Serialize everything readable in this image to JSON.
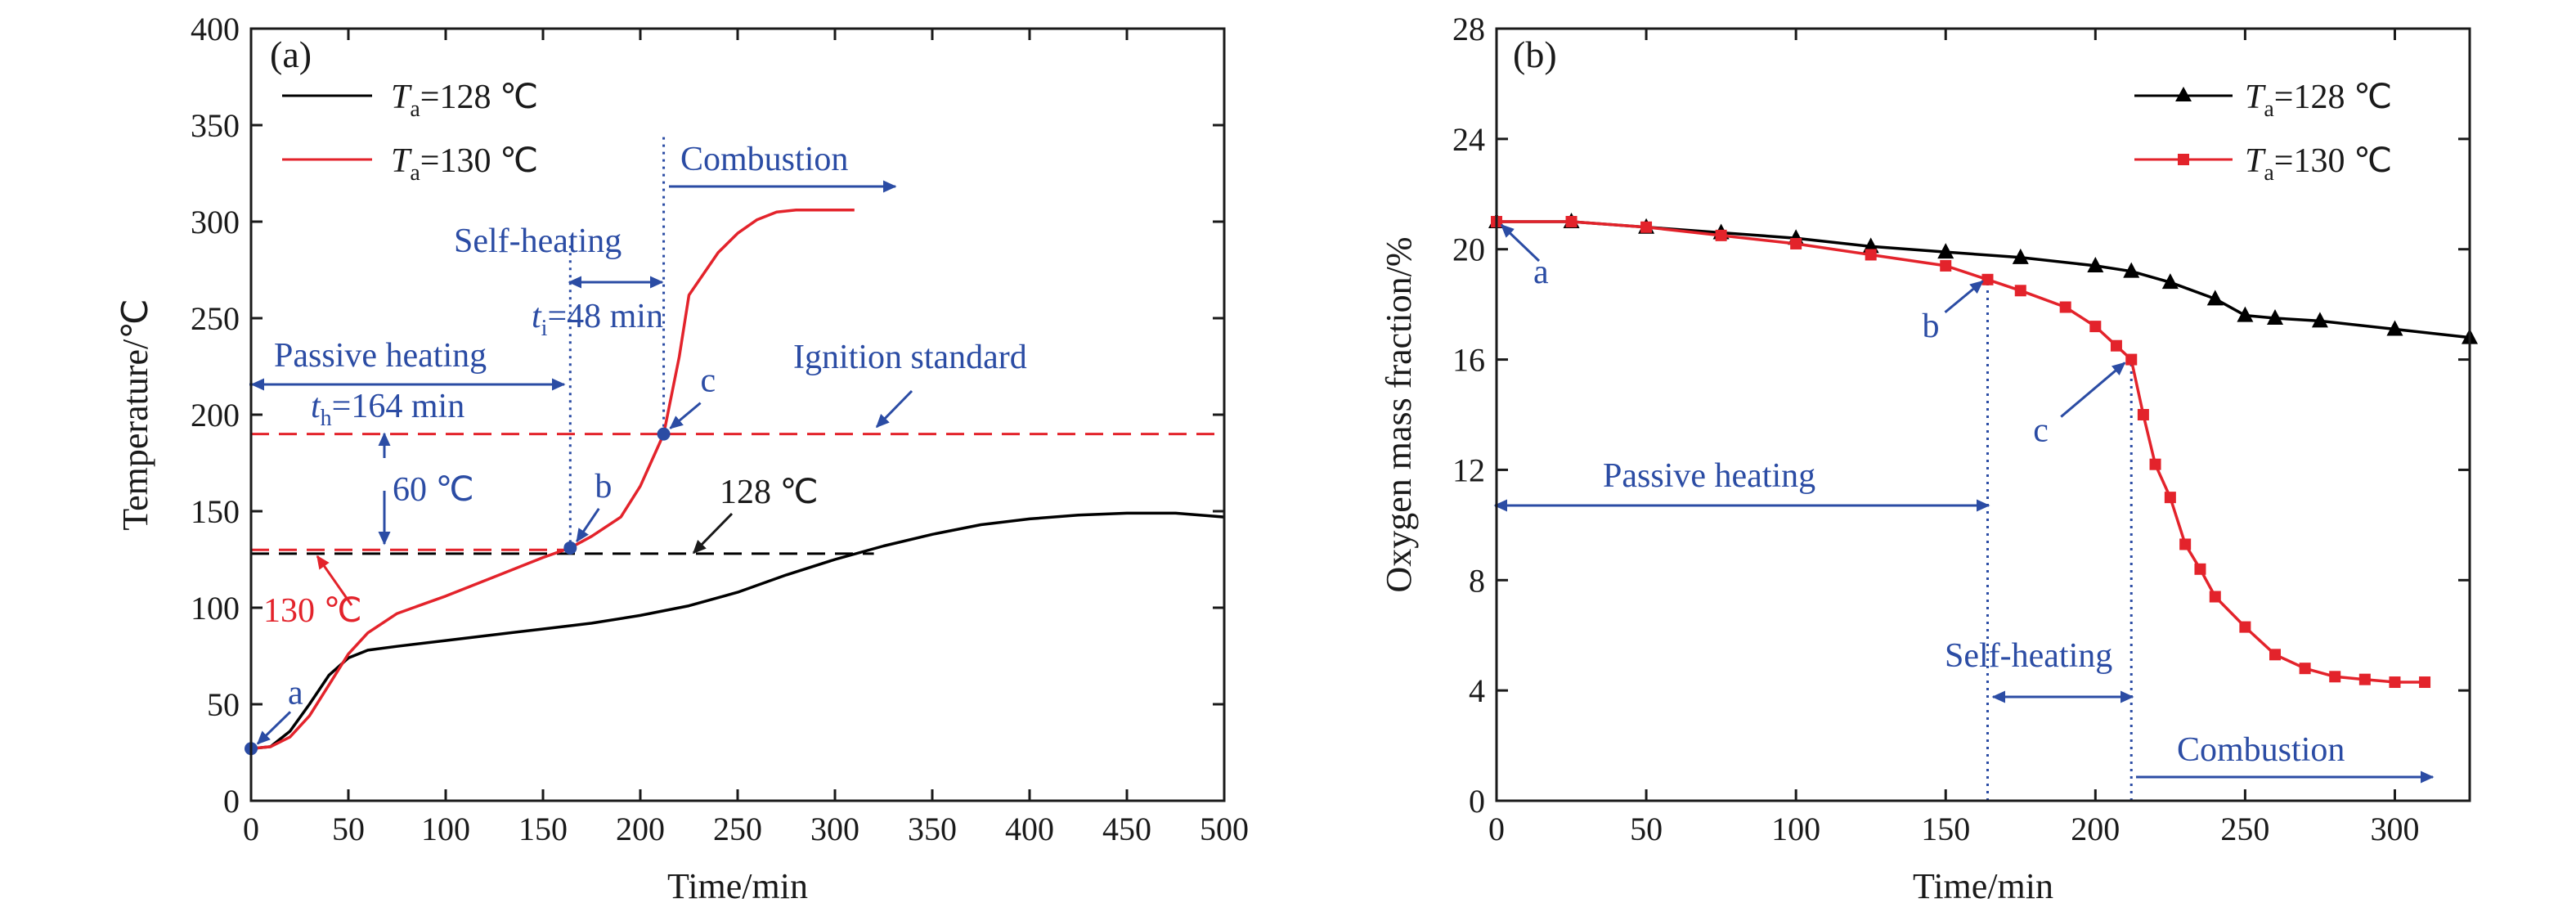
{
  "chart_data": [
    {
      "panel_label": "(a)",
      "type": "line",
      "xlabel": "Time/min",
      "ylabel": "Temperature/℃",
      "xlim": [
        0,
        500
      ],
      "ylim": [
        0,
        400
      ],
      "xticks": [
        0,
        50,
        100,
        150,
        200,
        250,
        300,
        350,
        400,
        450,
        500
      ],
      "yticks": [
        0,
        50,
        100,
        150,
        200,
        250,
        300,
        350,
        400
      ],
      "legend_position": "top-left",
      "grid": false,
      "series": [
        {
          "legend": {
            "var": "T",
            "sub": "a",
            "rest": "=128 ℃"
          },
          "color": "#000000",
          "x": [
            0,
            10,
            20,
            30,
            40,
            50,
            60,
            75,
            100,
            125,
            150,
            175,
            200,
            225,
            250,
            275,
            300,
            325,
            350,
            375,
            400,
            425,
            450,
            475,
            500
          ],
          "y": [
            27,
            28,
            36,
            50,
            65,
            74,
            78,
            80,
            83,
            86,
            89,
            92,
            96,
            101,
            108,
            117,
            125,
            132,
            138,
            143,
            146,
            148,
            149,
            149,
            147
          ]
        },
        {
          "legend": {
            "var": "T",
            "sub": "a",
            "rest": "=130 ℃"
          },
          "color": "#e3232b",
          "x": [
            0,
            10,
            20,
            30,
            40,
            50,
            60,
            75,
            100,
            125,
            150,
            164,
            175,
            190,
            200,
            212,
            220,
            225,
            240,
            250,
            260,
            270,
            280,
            300,
            310
          ],
          "y": [
            27,
            28,
            33,
            44,
            60,
            76,
            87,
            97,
            106,
            116,
            126,
            131,
            137,
            147,
            163,
            190,
            230,
            262,
            284,
            294,
            301,
            305,
            306,
            306,
            306
          ]
        }
      ],
      "reference_lines": [
        {
          "y": 190,
          "color": "#e3232b",
          "style": "dashed",
          "x_range": [
            0,
            500
          ]
        },
        {
          "y": 130,
          "color": "#e3232b",
          "style": "dashed",
          "x_range": [
            0,
            164
          ]
        },
        {
          "y": 128,
          "color": "#000000",
          "style": "dashed",
          "x_range": [
            0,
            320
          ]
        },
        {
          "x": 164,
          "color": "#2b4ca4",
          "style": "dotted",
          "y_range": [
            130,
            290
          ]
        },
        {
          "x": 212,
          "color": "#2b4ca4",
          "style": "dotted",
          "y_range": [
            190,
            345
          ]
        }
      ],
      "markers": [
        {
          "label": "a",
          "x": 0,
          "y": 27
        },
        {
          "label": "b",
          "x": 164,
          "y": 131
        },
        {
          "label": "c",
          "x": 212,
          "y": 190
        }
      ],
      "annotations": {
        "passive": "Passive heating",
        "th_var": "t",
        "th_sub": "h",
        "th_rest": "=164 min",
        "self_heating": "Self-heating",
        "ti_var": "t",
        "ti_sub": "i",
        "ti_rest": "=48 min",
        "combustion": "Combustion",
        "ignition": "Ignition standard",
        "delta": "60 ℃",
        "t128": "128 ℃",
        "t130": "130 ℃"
      }
    },
    {
      "panel_label": "(b)",
      "type": "line",
      "xlabel": "Time/min",
      "ylabel": "Oxygen mass fraction/%",
      "xlim": [
        0,
        325
      ],
      "ylim": [
        0,
        28
      ],
      "xticks": [
        0,
        50,
        100,
        150,
        200,
        250,
        300
      ],
      "yticks": [
        0,
        4,
        8,
        12,
        16,
        20,
        24,
        28
      ],
      "legend_position": "top-right",
      "grid": false,
      "series": [
        {
          "legend": {
            "var": "T",
            "sub": "a",
            "rest": "=128 ℃"
          },
          "color": "#000000",
          "marker": "triangle",
          "x": [
            0,
            25,
            50,
            75,
            100,
            125,
            150,
            175,
            200,
            212,
            225,
            240,
            250,
            260,
            275,
            300,
            325
          ],
          "y": [
            21.0,
            21.0,
            20.8,
            20.6,
            20.4,
            20.1,
            19.9,
            19.7,
            19.4,
            19.2,
            18.8,
            18.2,
            17.6,
            17.5,
            17.4,
            17.1,
            16.8
          ]
        },
        {
          "legend": {
            "var": "T",
            "sub": "a",
            "rest": "=130 ℃"
          },
          "color": "#e3232b",
          "marker": "square",
          "x": [
            0,
            25,
            50,
            75,
            100,
            125,
            150,
            164,
            175,
            190,
            200,
            207,
            212,
            216,
            220,
            225,
            230,
            235,
            240,
            250,
            260,
            270,
            280,
            290,
            300,
            310
          ],
          "y": [
            21.0,
            21.0,
            20.8,
            20.5,
            20.2,
            19.8,
            19.4,
            18.9,
            18.5,
            17.9,
            17.2,
            16.5,
            16.0,
            14.0,
            12.2,
            11.0,
            9.3,
            8.4,
            7.4,
            6.3,
            5.3,
            4.8,
            4.5,
            4.4,
            4.3,
            4.3
          ]
        }
      ],
      "reference_lines": [
        {
          "x": 164,
          "color": "#2b4ca4",
          "style": "dotted",
          "y_range": [
            0,
            18.9
          ]
        },
        {
          "x": 212,
          "color": "#2b4ca4",
          "style": "dotted",
          "y_range": [
            0,
            16.0
          ]
        }
      ],
      "markers": [
        {
          "label": "a",
          "x": 0,
          "y": 21.0
        },
        {
          "label": "b",
          "x": 164,
          "y": 18.9
        },
        {
          "label": "c",
          "x": 212,
          "y": 16.0
        }
      ],
      "annotations": {
        "passive": "Passive heating",
        "self_heating": "Self-heating",
        "combustion": "Combustion"
      }
    }
  ],
  "colors": {
    "annotation": "#2b4ca4",
    "red": "#e3232b",
    "black": "#000000"
  }
}
